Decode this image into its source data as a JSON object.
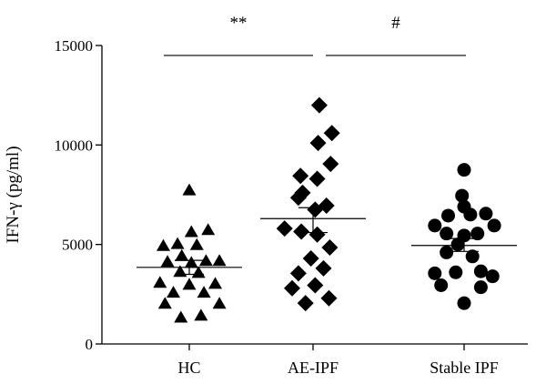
{
  "chart_data": {
    "type": "scatter",
    "ylabel": "IFN-γ (pg/ml)",
    "xlabel": "",
    "ylim": [
      0,
      15000
    ],
    "yticks": [
      0,
      5000,
      10000,
      15000
    ],
    "tick_labels": [
      "0",
      "5000",
      "10000",
      "15000"
    ],
    "categories": [
      "HC",
      "AE-IPF",
      "Stable IPF"
    ],
    "grid": false,
    "series": [
      {
        "category": "HC",
        "marker": "triangle",
        "mean": 3850,
        "sem_low": 3500,
        "sem_high": 4200,
        "points": [
          {
            "dx": 0.0,
            "y": 7700
          },
          {
            "dx": 0.45,
            "y": 5700
          },
          {
            "dx": 0.05,
            "y": 5600
          },
          {
            "dx": -0.28,
            "y": 5000
          },
          {
            "dx": 0.18,
            "y": 4950
          },
          {
            "dx": -0.62,
            "y": 4900
          },
          {
            "dx": -0.18,
            "y": 4400
          },
          {
            "dx": 0.72,
            "y": 4150
          },
          {
            "dx": 0.4,
            "y": 4150
          },
          {
            "dx": -0.52,
            "y": 4100
          },
          {
            "dx": 0.05,
            "y": 4050
          },
          {
            "dx": -0.22,
            "y": 3600
          },
          {
            "dx": 0.22,
            "y": 3550
          },
          {
            "dx": -0.7,
            "y": 3050
          },
          {
            "dx": 0.62,
            "y": 3000
          },
          {
            "dx": 0.0,
            "y": 2950
          },
          {
            "dx": -0.38,
            "y": 2550
          },
          {
            "dx": 0.35,
            "y": 2550
          },
          {
            "dx": -0.58,
            "y": 2000
          },
          {
            "dx": 0.72,
            "y": 2000
          },
          {
            "dx": -0.2,
            "y": 1300
          },
          {
            "dx": 0.28,
            "y": 1400
          }
        ]
      },
      {
        "category": "AE-IPF",
        "marker": "diamond",
        "mean": 6300,
        "sem_low": 5600,
        "sem_high": 6850,
        "points": [
          {
            "dx": 0.15,
            "y": 12000
          },
          {
            "dx": 0.45,
            "y": 10600
          },
          {
            "dx": 0.12,
            "y": 10100
          },
          {
            "dx": 0.42,
            "y": 9050
          },
          {
            "dx": -0.3,
            "y": 8450
          },
          {
            "dx": 0.1,
            "y": 8300
          },
          {
            "dx": -0.25,
            "y": 7600
          },
          {
            "dx": -0.35,
            "y": 7350
          },
          {
            "dx": 0.32,
            "y": 6950
          },
          {
            "dx": 0.05,
            "y": 6750
          },
          {
            "dx": -0.68,
            "y": 5800
          },
          {
            "dx": -0.28,
            "y": 5650
          },
          {
            "dx": 0.1,
            "y": 5500
          },
          {
            "dx": 0.4,
            "y": 4850
          },
          {
            "dx": -0.05,
            "y": 4300
          },
          {
            "dx": 0.25,
            "y": 3800
          },
          {
            "dx": -0.35,
            "y": 3550
          },
          {
            "dx": -0.5,
            "y": 2800
          },
          {
            "dx": 0.05,
            "y": 2950
          },
          {
            "dx": -0.18,
            "y": 2050
          },
          {
            "dx": 0.38,
            "y": 2300
          }
        ]
      },
      {
        "category": "Stable IPF",
        "marker": "circle",
        "mean": 4950,
        "sem_low": 4650,
        "sem_high": 5300,
        "points": [
          {
            "dx": 0.0,
            "y": 8750
          },
          {
            "dx": -0.05,
            "y": 7450
          },
          {
            "dx": 0.0,
            "y": 6900
          },
          {
            "dx": -0.38,
            "y": 6450
          },
          {
            "dx": 0.52,
            "y": 6550
          },
          {
            "dx": 0.15,
            "y": 6500
          },
          {
            "dx": -0.7,
            "y": 5950
          },
          {
            "dx": 0.72,
            "y": 5950
          },
          {
            "dx": -0.42,
            "y": 5550
          },
          {
            "dx": 0.32,
            "y": 5550
          },
          {
            "dx": 0.0,
            "y": 5450
          },
          {
            "dx": -0.15,
            "y": 5000
          },
          {
            "dx": -0.42,
            "y": 4600
          },
          {
            "dx": 0.2,
            "y": 4400
          },
          {
            "dx": -0.7,
            "y": 3550
          },
          {
            "dx": -0.2,
            "y": 3600
          },
          {
            "dx": 0.4,
            "y": 3650
          },
          {
            "dx": 0.68,
            "y": 3400
          },
          {
            "dx": -0.55,
            "y": 2950
          },
          {
            "dx": 0.4,
            "y": 2850
          },
          {
            "dx": 0.0,
            "y": 2050
          }
        ]
      }
    ],
    "significance": [
      {
        "label": "**",
        "from": 0,
        "to": 1,
        "y": 14500
      },
      {
        "label": "#",
        "from": 1,
        "to": 2,
        "y": 14500
      }
    ]
  }
}
